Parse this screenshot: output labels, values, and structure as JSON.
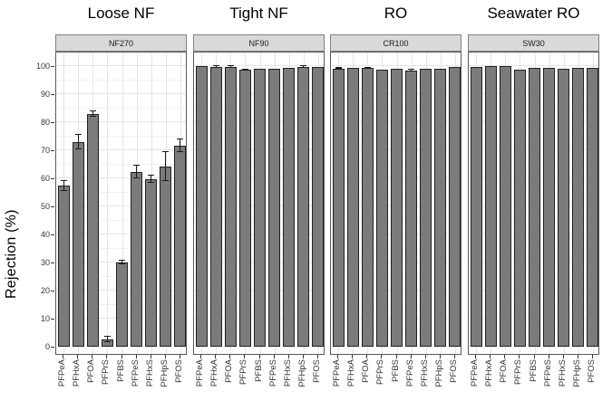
{
  "chart_data": {
    "type": "bar",
    "title": "",
    "ylabel": "Rejection (%)",
    "ylim": [
      0,
      105
    ],
    "yticks": [
      0,
      10,
      20,
      30,
      40,
      50,
      60,
      70,
      80,
      90,
      100
    ],
    "grid": true,
    "legend": "none",
    "categories": [
      "PFPeA",
      "PFHxA",
      "PFOA",
      "PFPrS",
      "PFBS",
      "PFPeS",
      "PFHxS",
      "PFHpS",
      "PFOS"
    ],
    "facets": [
      {
        "title": "Loose NF",
        "strip": "NF270",
        "values": [
          57.3,
          73.0,
          82.8,
          2.6,
          30.0,
          62.2,
          59.7,
          64.2,
          71.6
        ],
        "errors": [
          1.7,
          2.6,
          1.0,
          1.0,
          0.5,
          2.3,
          1.4,
          5.2,
          2.4
        ]
      },
      {
        "title": "Tight NF",
        "strip": "NF90",
        "values": [
          99.9,
          99.6,
          99.6,
          98.6,
          99.1,
          99.1,
          99.3,
          99.7,
          99.8
        ],
        "errors": [
          0,
          0.4,
          0.3,
          0.2,
          0,
          0,
          0,
          0.3,
          0
        ]
      },
      {
        "title": "RO",
        "strip": "CR100",
        "values": [
          99.1,
          99.3,
          99.2,
          98.6,
          98.9,
          98.4,
          99.0,
          99.1,
          99.8
        ],
        "errors": [
          0.2,
          0,
          0.2,
          0,
          0,
          0.2,
          0,
          0,
          0
        ]
      },
      {
        "title": "Seawater RO",
        "strip": "SW30",
        "values": [
          99.8,
          99.9,
          99.9,
          98.7,
          99.3,
          99.3,
          99.1,
          99.5,
          99.4
        ],
        "errors": [
          0,
          0,
          0,
          0,
          0,
          0,
          0,
          0,
          0
        ]
      }
    ]
  },
  "colors": {
    "bar_fill": "#7b7b7b",
    "bar_border": "#212121",
    "error_bar": "#1a1a1a",
    "strip_bg": "#d9d9d9",
    "strip_border": "#808080",
    "panel_border": "#595959",
    "grid_major": "#e5e5e5",
    "grid_minor": "#f2f2f2",
    "tick_text": "#333333"
  }
}
